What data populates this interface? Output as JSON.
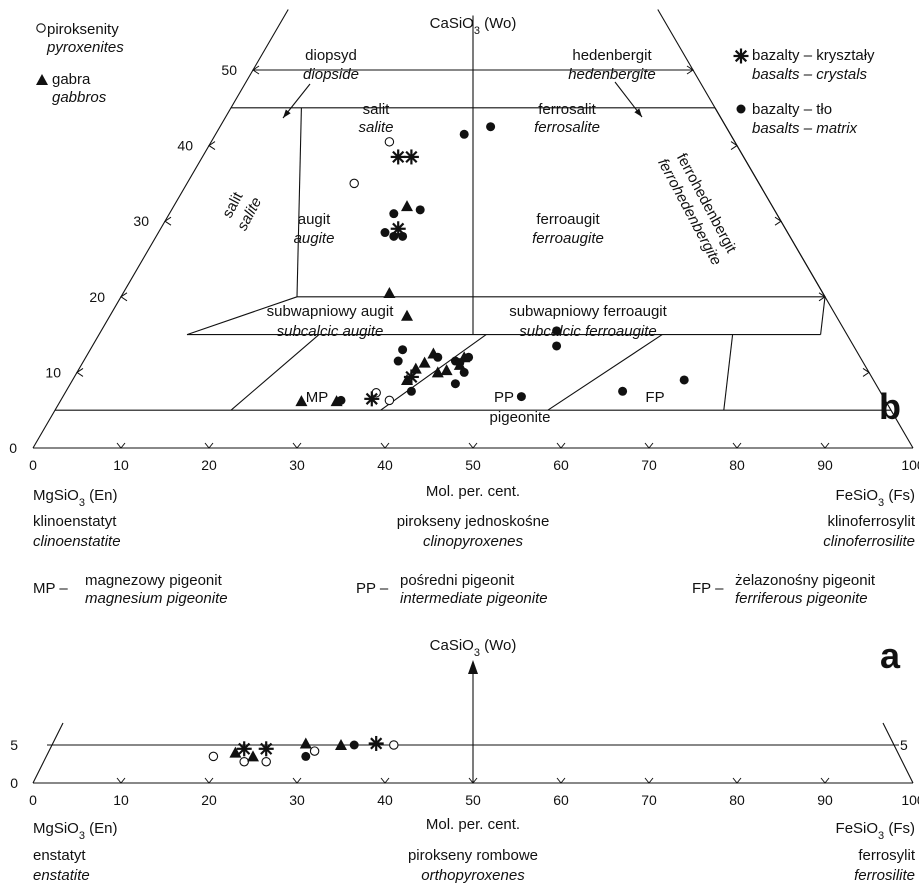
{
  "colors": {
    "ink": "#111111",
    "background": "#ffffff"
  },
  "chart_data": [
    {
      "type": "scatter",
      "panel": "b",
      "diagram": "pyroxene quadrilateral",
      "apex_label": "CaSiO3 (Wo)",
      "x_axis": {
        "ticks": [
          0,
          10,
          20,
          30,
          40,
          50,
          60,
          70,
          80,
          90,
          100
        ],
        "label": "Mol. per. cent.",
        "left_end": "MgSiO3 (En)",
        "right_end": "FeSiO3 (Fs)",
        "left_name_pl": "klinoenstatyt",
        "left_name_en": "clinoenstatite",
        "right_name_pl": "klinoferrosylit",
        "right_name_en": "clinoferrosilite",
        "middle_name_pl": "pirokseny jednoskośne",
        "middle_name_en": "clinopyroxenes"
      },
      "y_axis": {
        "ticks": [
          0,
          10,
          20,
          30,
          40,
          50
        ],
        "label": "Wo",
        "range": [
          0,
          50
        ]
      },
      "field_names": {
        "diopside": [
          "diopsyd",
          "diopside"
        ],
        "hedenbergite": [
          "hedenbergit",
          "hedenbergite"
        ],
        "salite_top": [
          "salit",
          "salite"
        ],
        "ferrosalite": [
          "ferrosalit",
          "ferrosalite"
        ],
        "salite_side": [
          "salit",
          "salite"
        ],
        "augite": [
          "augit",
          "augite"
        ],
        "ferroaugite": [
          "ferroaugit",
          "ferroaugite"
        ],
        "ferrohedenbergite": [
          "ferrohedenbergit",
          "ferrohedenbergite"
        ],
        "subcalcic_augite": [
          "subwapniowy augit",
          "subcalcic augite"
        ],
        "subcalcic_ferroaugite": [
          "subwapniowy ferroaugit",
          "subcalcic ferroaugite"
        ],
        "MP": "MP",
        "PP": [
          "PP",
          "pigeonite"
        ],
        "FP": "FP"
      },
      "legend": [
        {
          "marker": "open-circle",
          "pl": "piroksenity",
          "en": "pyroxenites"
        },
        {
          "marker": "triangle",
          "pl": "gabra",
          "en": "gabbros"
        },
        {
          "marker": "star",
          "pl": "bazalty – kryształy",
          "en": "basalts – crystals"
        },
        {
          "marker": "dot",
          "pl": "bazalty – tło",
          "en": "basalts – matrix"
        }
      ],
      "abbreviations": [
        {
          "code": "MP –",
          "pl": "magnezowy pigeonit",
          "en": "magnesium pigeonite"
        },
        {
          "code": "PP –",
          "pl": "pośredni pigeonit",
          "en": "intermediate pigeonite"
        },
        {
          "code": "FP –",
          "pl": "żelazonośny pigeonit",
          "en": "ferriferous pigeonite"
        }
      ],
      "series": [
        {
          "name": "piroksenity",
          "marker": "open-circle",
          "points": [
            [
              40.5,
              40.5
            ],
            [
              36.5,
              35
            ],
            [
              39,
              7.3
            ],
            [
              40.5,
              6.3
            ]
          ]
        },
        {
          "name": "gabra",
          "marker": "triangle",
          "points": [
            [
              42.5,
              32
            ],
            [
              40.5,
              20.5
            ],
            [
              42.5,
              17.5
            ],
            [
              30.5,
              6.2
            ],
            [
              34.5,
              6.2
            ],
            [
              42.5,
              9
            ],
            [
              43.5,
              10.5
            ],
            [
              44.5,
              11.3
            ],
            [
              45.5,
              12.5
            ],
            [
              46,
              10
            ],
            [
              47,
              10.3
            ],
            [
              48.5,
              11
            ],
            [
              49,
              12
            ]
          ]
        },
        {
          "name": "bazalty – kryształy",
          "marker": "star",
          "points": [
            [
              41.5,
              38.5
            ],
            [
              43,
              38.5
            ],
            [
              41.5,
              29
            ],
            [
              43,
              9.4
            ],
            [
              38.5,
              6.5
            ]
          ]
        },
        {
          "name": "bazalty – tło",
          "marker": "dot",
          "points": [
            [
              49,
              41.5
            ],
            [
              52,
              42.5
            ],
            [
              41,
              31
            ],
            [
              44,
              31.5
            ],
            [
              40,
              28.5
            ],
            [
              41,
              28
            ],
            [
              42,
              28
            ],
            [
              35,
              6.3
            ],
            [
              41.5,
              11.5
            ],
            [
              42,
              13
            ],
            [
              46,
              12
            ],
            [
              48,
              11.5
            ],
            [
              48.5,
              11.3
            ],
            [
              49.5,
              12
            ],
            [
              49,
              10
            ],
            [
              48,
              8.5
            ],
            [
              43,
              7.5
            ],
            [
              55.5,
              6.8
            ],
            [
              59.5,
              15.5
            ],
            [
              59.5,
              13.5
            ],
            [
              67,
              7.5
            ],
            [
              74,
              9
            ]
          ]
        }
      ]
    },
    {
      "type": "scatter",
      "panel": "a",
      "apex_label": "CaSiO3 (Wo)",
      "x_axis": {
        "ticks": [
          0,
          10,
          20,
          30,
          40,
          50,
          60,
          70,
          80,
          90,
          100
        ],
        "label": "Mol. per. cent.",
        "left_end": "MgSiO3 (En)",
        "right_end": "FeSiO3 (Fs)",
        "left_name_pl": "enstatyt",
        "left_name_en": "enstatite",
        "right_name_pl": "ferrosylit",
        "right_name_en": "ferrosilite",
        "middle_name_pl": "pirokseny rombowe",
        "middle_name_en": "orthopyroxenes"
      },
      "y_axis": {
        "ticks": [
          0,
          5
        ],
        "range": [
          0,
          5
        ]
      },
      "series": [
        {
          "name": "piroksenity",
          "marker": "open-circle",
          "points": [
            [
              20.5,
              3.5
            ],
            [
              24,
              2.8
            ],
            [
              26.5,
              2.8
            ],
            [
              32,
              4.2
            ],
            [
              41,
              5
            ]
          ]
        },
        {
          "name": "gabra",
          "marker": "triangle",
          "points": [
            [
              23,
              4
            ],
            [
              25,
              3.5
            ],
            [
              31,
              5.2
            ],
            [
              35,
              5
            ]
          ]
        },
        {
          "name": "bazalty – kryształy",
          "marker": "star",
          "points": [
            [
              24,
              4.5
            ],
            [
              26.5,
              4.5
            ],
            [
              39,
              5.2
            ]
          ]
        },
        {
          "name": "bazalty – tło",
          "marker": "dot",
          "points": [
            [
              31,
              3.5
            ],
            [
              36.5,
              5
            ]
          ]
        }
      ]
    }
  ],
  "panel_letters": {
    "a": "a",
    "b": "b"
  }
}
